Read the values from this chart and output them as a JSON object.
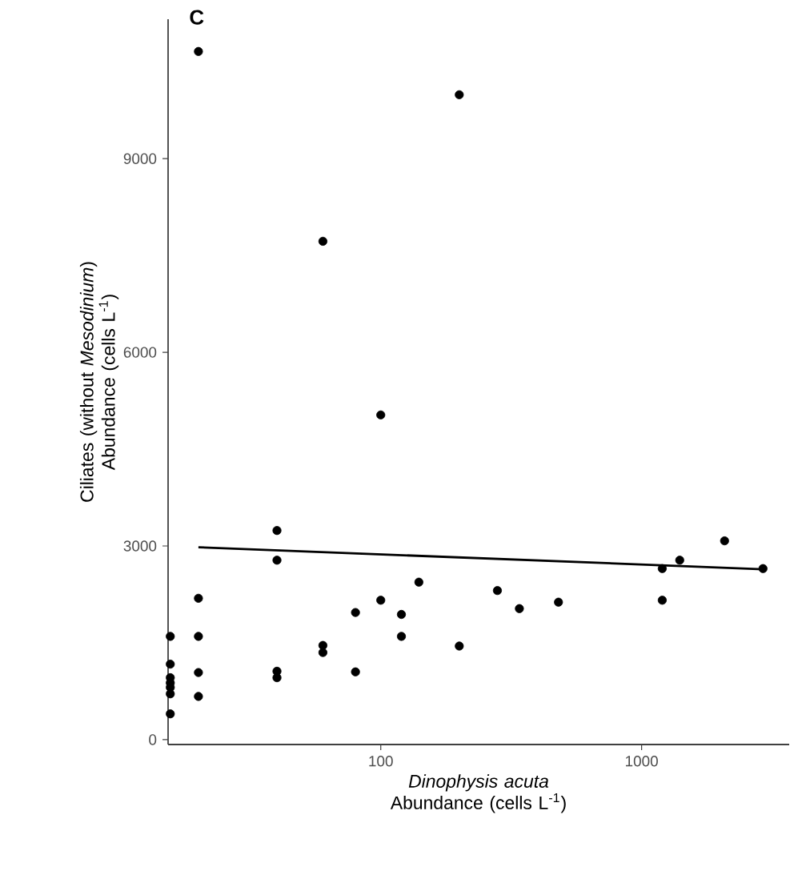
{
  "chart_data": {
    "type": "scatter",
    "title": "C",
    "xlabel": "*Dinophysis acuta* Abundance (cells L$^{-1}$)",
    "ylabel": "Ciliates (without *Mesodinium*) Abundance (cells L$^{-1}$)",
    "log": "x",
    "xlim": [
      15.3,
      3680
    ],
    "ylim": [
      -75,
      11160
    ],
    "xticks": [
      100,
      1000
    ],
    "yticks": [
      0,
      3000,
      6000,
      9000
    ],
    "grid": false,
    "series": [
      {
        "color": "#000000",
        "marker": "circle",
        "x": [
          20,
          200,
          60,
          100,
          40,
          40,
          20,
          100,
          140,
          80,
          120,
          120,
          20,
          15.6,
          60,
          60,
          200,
          40,
          40,
          80,
          20,
          20,
          15.6,
          15.6,
          15.6,
          15.6,
          15.6,
          15.6,
          280,
          340,
          480,
          1200,
          1200,
          1400,
          2080,
          2920
        ],
        "values": [
          10660,
          9990,
          7720,
          5030,
          3240,
          2780,
          2190,
          2160,
          2440,
          1970,
          1940,
          1600,
          1600,
          1600,
          1460,
          1350,
          1450,
          1060,
          960,
          1050,
          1040,
          670,
          1170,
          960,
          880,
          810,
          710,
          400,
          2310,
          2030,
          2130,
          2650,
          2160,
          2780,
          3080,
          2650
        ]
      },
      {
        "type": "line",
        "color": "#000000",
        "line_style": "solid",
        "marker": "none",
        "x": [
          20,
          2920
        ],
        "values": [
          2980,
          2640
        ]
      }
    ]
  }
}
